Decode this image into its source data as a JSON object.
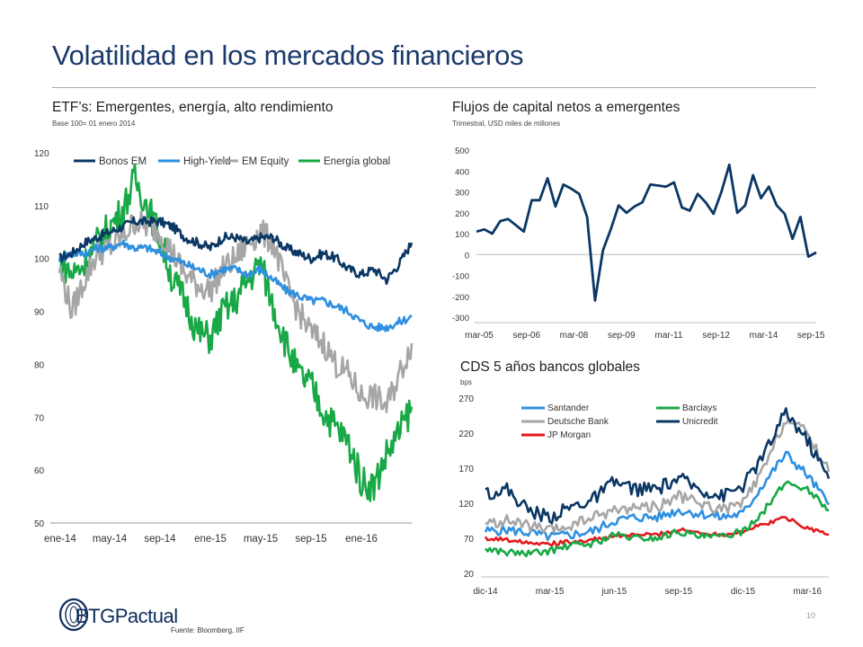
{
  "page": {
    "title": "Volatilidad en los mercados financieros",
    "source": "Fuente: Bloomberg, IIF",
    "page_number": "10",
    "logo_text": "BTGPactual"
  },
  "colors": {
    "title": "#1b3a6b",
    "bonos_em": "#0b3764",
    "high_yield": "#2f8fe0",
    "em_equity": "#a6a6a6",
    "energia": "#19a846",
    "santander": "#2f8fe0",
    "barclays": "#19a846",
    "deutsche": "#a6a6a6",
    "unicredit": "#0b3764",
    "jpmorgan": "#e31a1c"
  },
  "panels": {
    "etf": {
      "title": "ETF’s: Emergentes, energía, alto rendimiento",
      "subtitle": "Base 100= 01 enero 2014"
    },
    "flujos": {
      "title": "Flujos de capital netos a emergentes",
      "subtitle": "Trimestral, USD miles de millones"
    },
    "cds": {
      "title": "CDS 5 años bancos globales",
      "subtitle": "bps"
    }
  },
  "chart_data": [
    {
      "id": "etf",
      "type": "line",
      "title": "ETF’s: Emergentes, energía, alto rendimiento",
      "subtitle": "Base 100= 01 enero 2014",
      "ylim": [
        50,
        120
      ],
      "yticks": [
        "50",
        "60",
        "70",
        "80",
        "90",
        "100",
        "110",
        "120"
      ],
      "xlim": [
        0,
        28
      ],
      "xticks": [
        {
          "x": 0,
          "label": "ene-14"
        },
        {
          "x": 4,
          "label": "may-14"
        },
        {
          "x": 8,
          "label": "sep-14"
        },
        {
          "x": 12,
          "label": "ene-15"
        },
        {
          "x": 16,
          "label": "may-15"
        },
        {
          "x": 20,
          "label": "sep-15"
        },
        {
          "x": 24,
          "label": "ene-16"
        }
      ],
      "legend": "top",
      "series": [
        {
          "name": "Bonos EM",
          "color_key": "bonos_em",
          "x": [
            0,
            1,
            2,
            3,
            4,
            5,
            6,
            7,
            8,
            9,
            10,
            11,
            12,
            13,
            14,
            15,
            16,
            17,
            18,
            19,
            20,
            21,
            22,
            23,
            24,
            25,
            26,
            27,
            28
          ],
          "values": [
            100,
            101,
            103,
            104,
            105,
            106,
            107,
            107,
            107,
            106,
            104,
            103,
            102,
            104,
            104,
            103,
            104,
            104,
            102,
            101,
            100,
            101,
            100,
            98,
            97,
            98,
            96,
            99,
            103
          ]
        },
        {
          "name": "High-Yield",
          "color_key": "high_yield",
          "x": [
            0,
            1,
            2,
            3,
            4,
            5,
            6,
            7,
            8,
            9,
            10,
            11,
            12,
            13,
            14,
            15,
            16,
            17,
            18,
            19,
            20,
            21,
            22,
            23,
            24,
            25,
            26,
            27,
            28
          ],
          "values": [
            100,
            101,
            101,
            102,
            102,
            103,
            102,
            102,
            101,
            100,
            99,
            98,
            97,
            98,
            98,
            97,
            98,
            96,
            94,
            93,
            92,
            92,
            91,
            90,
            88,
            87,
            87,
            88,
            89
          ]
        },
        {
          "name": "EM Equity",
          "color_key": "em_equity",
          "x": [
            0,
            1,
            2,
            3,
            4,
            5,
            6,
            7,
            8,
            9,
            10,
            11,
            12,
            13,
            14,
            15,
            16,
            17,
            18,
            19,
            20,
            21,
            22,
            23,
            24,
            25,
            26,
            27,
            28
          ],
          "values": [
            98,
            90,
            96,
            101,
            102,
            104,
            107,
            106,
            105,
            101,
            97,
            95,
            94,
            98,
            100,
            103,
            105,
            103,
            95,
            90,
            86,
            84,
            80,
            78,
            74,
            74,
            72,
            78,
            84
          ]
        },
        {
          "name": "Energía global",
          "color_key": "energia",
          "x": [
            0,
            1,
            2,
            3,
            4,
            5,
            6,
            7,
            8,
            9,
            10,
            11,
            12,
            13,
            14,
            15,
            16,
            17,
            18,
            19,
            20,
            21,
            22,
            23,
            24,
            25,
            26,
            27,
            28
          ],
          "values": [
            100,
            97,
            99,
            103,
            106,
            109,
            115,
            110,
            104,
            96,
            92,
            86,
            85,
            90,
            92,
            96,
            99,
            91,
            84,
            78,
            76,
            71,
            68,
            65,
            58,
            57,
            63,
            67,
            72
          ]
        }
      ]
    },
    {
      "id": "flujos",
      "type": "line",
      "title": "Flujos de capital netos a emergentes",
      "subtitle": "Trimestral, USD miles de millones",
      "ylim": [
        -300,
        500
      ],
      "yticks": [
        "-300",
        "-200",
        "-100",
        "0",
        "100",
        "200",
        "300",
        "400",
        "500"
      ],
      "xticks": [
        "mar-05",
        "sep-06",
        "mar-08",
        "sep-09",
        "mar-11",
        "sep-12",
        "mar-14",
        "sep-15"
      ],
      "series": [
        {
          "name": "",
          "color_key": "bonos_em",
          "x": [
            "mar-05",
            "jun-05",
            "sep-05",
            "dic-05",
            "mar-06",
            "jun-06",
            "sep-06",
            "dic-06",
            "mar-07",
            "jun-07",
            "sep-07",
            "dic-07",
            "mar-08",
            "jun-08",
            "sep-08",
            "dic-08",
            "mar-09",
            "jun-09",
            "sep-09",
            "dic-09",
            "mar-10",
            "jun-10",
            "sep-10",
            "dic-10",
            "mar-11",
            "jun-11",
            "sep-11",
            "dic-11",
            "mar-12",
            "jun-12",
            "sep-12",
            "dic-12",
            "mar-13",
            "jun-13",
            "sep-13",
            "dic-13",
            "mar-14",
            "jun-14",
            "sep-14",
            "dic-14",
            "mar-15",
            "jun-15",
            "sep-15",
            "dic-15"
          ],
          "values": [
            110,
            120,
            100,
            160,
            170,
            140,
            110,
            260,
            260,
            365,
            230,
            335,
            315,
            290,
            180,
            -220,
            20,
            120,
            235,
            200,
            230,
            250,
            335,
            330,
            325,
            345,
            225,
            210,
            290,
            250,
            195,
            300,
            430,
            200,
            235,
            380,
            270,
            325,
            235,
            195,
            75,
            180,
            -10,
            10
          ]
        }
      ]
    },
    {
      "id": "cds",
      "type": "line",
      "title": "CDS 5 años bancos globales",
      "subtitle": "bps",
      "ylim": [
        20,
        270
      ],
      "yticks": [
        "20",
        "70",
        "120",
        "170",
        "220",
        "270"
      ],
      "xticks": [
        "dic-14",
        "mar-15",
        "jun-15",
        "sep-15",
        "dic-15",
        "mar-16"
      ],
      "legend": "top-left",
      "series": [
        {
          "name": "Santander",
          "color_key": "santander",
          "x": [
            "dic-14",
            "ene-15",
            "feb-15",
            "mar-15",
            "abr-15",
            "may-15",
            "jun-15",
            "jul-15",
            "ago-15",
            "sep-15",
            "oct-15",
            "nov-15",
            "dic-15",
            "ene-16",
            "feb-16",
            "mar-16",
            "abr-16"
          ],
          "values": [
            80,
            82,
            78,
            72,
            75,
            80,
            95,
            100,
            100,
            110,
            105,
            100,
            105,
            150,
            190,
            160,
            118
          ]
        },
        {
          "name": "Barclays",
          "color_key": "barclays",
          "x": [
            "dic-14",
            "ene-15",
            "feb-15",
            "mar-15",
            "abr-15",
            "may-15",
            "jun-15",
            "jul-15",
            "ago-15",
            "sep-15",
            "oct-15",
            "nov-15",
            "dic-15",
            "ene-16",
            "feb-16",
            "mar-16",
            "abr-16"
          ],
          "values": [
            55,
            50,
            48,
            52,
            60,
            62,
            75,
            70,
            70,
            80,
            72,
            72,
            80,
            110,
            150,
            140,
            110
          ]
        },
        {
          "name": "Deutsche Bank",
          "color_key": "deutsche",
          "x": [
            "dic-14",
            "ene-15",
            "feb-15",
            "mar-15",
            "abr-15",
            "may-15",
            "jun-15",
            "jul-15",
            "ago-15",
            "sep-15",
            "oct-15",
            "nov-15",
            "dic-15",
            "ene-16",
            "feb-16",
            "mar-16",
            "abr-16"
          ],
          "values": [
            90,
            95,
            88,
            80,
            88,
            100,
            110,
            115,
            115,
            130,
            120,
            110,
            120,
            170,
            240,
            220,
            165
          ]
        },
        {
          "name": "Unicredit",
          "color_key": "unicredit",
          "x": [
            "dic-14",
            "ene-15",
            "feb-15",
            "mar-15",
            "abr-15",
            "may-15",
            "jun-15",
            "jul-15",
            "ago-15",
            "sep-15",
            "oct-15",
            "nov-15",
            "dic-15",
            "ene-16",
            "feb-16",
            "mar-16",
            "abr-16"
          ],
          "values": [
            135,
            140,
            110,
            100,
            115,
            125,
            150,
            140,
            140,
            155,
            140,
            130,
            145,
            190,
            250,
            210,
            155
          ]
        },
        {
          "name": "JP Morgan",
          "color_key": "jpmorgan",
          "x": [
            "dic-14",
            "ene-15",
            "feb-15",
            "mar-15",
            "abr-15",
            "may-15",
            "jun-15",
            "jul-15",
            "ago-15",
            "sep-15",
            "oct-15",
            "nov-15",
            "dic-15",
            "ene-16",
            "feb-16",
            "mar-16",
            "abr-16"
          ],
          "values": [
            70,
            68,
            65,
            62,
            65,
            68,
            72,
            75,
            75,
            82,
            78,
            75,
            80,
            90,
            100,
            85,
            75
          ]
        }
      ]
    }
  ]
}
